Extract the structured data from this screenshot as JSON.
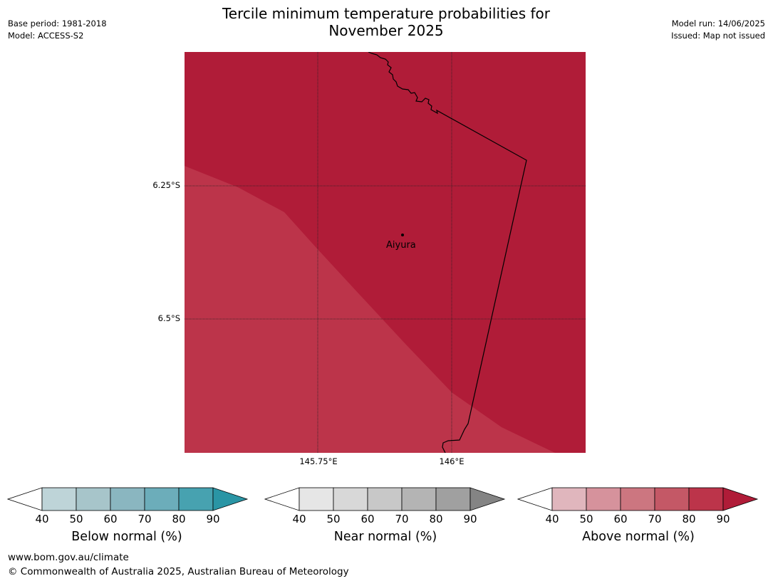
{
  "header": {
    "title_line1": "Tercile minimum temperature probabilities for",
    "title_line2": "November 2025",
    "base_period": "Base period: 1981-2018",
    "model": "Model: ACCESS-S2",
    "model_run": "Model run: 14/06/2025",
    "issued": "Issued: Map not issued"
  },
  "map": {
    "lat_labels": [
      "6.25°S",
      "6.5°S"
    ],
    "lon_labels": [
      "145.75°E",
      "146°E"
    ],
    "place": "Aiyura",
    "colors": {
      "above_80_90": "#bc344a",
      "above_90_plus": "#b01c38",
      "boundary": "#000000"
    }
  },
  "legends": {
    "below": {
      "title": "Below normal (%)",
      "ticks": [
        "40",
        "50",
        "60",
        "70",
        "80",
        "90"
      ],
      "colors": [
        "#ffffff",
        "#bed4d8",
        "#a7c5ca",
        "#8ab6c0",
        "#6cadba",
        "#47a2b0",
        "#2a95a5"
      ]
    },
    "near": {
      "title": "Near normal (%)",
      "ticks": [
        "40",
        "50",
        "60",
        "70",
        "80",
        "90"
      ],
      "colors": [
        "#ffffff",
        "#e6e6e6",
        "#d8d8d8",
        "#c8c8c8",
        "#b4b4b4",
        "#a0a0a0",
        "#848484"
      ]
    },
    "above": {
      "title": "Above normal (%)",
      "ticks": [
        "40",
        "50",
        "60",
        "70",
        "80",
        "90"
      ],
      "colors": [
        "#ffffff",
        "#e0b6bd",
        "#d6929c",
        "#cc7680",
        "#c45866",
        "#bc344a",
        "#b01c38"
      ]
    }
  },
  "footer": {
    "url": "www.bom.gov.au/climate",
    "copyright": "© Commonwealth of Australia 2025, Australian Bureau of Meteorology"
  }
}
